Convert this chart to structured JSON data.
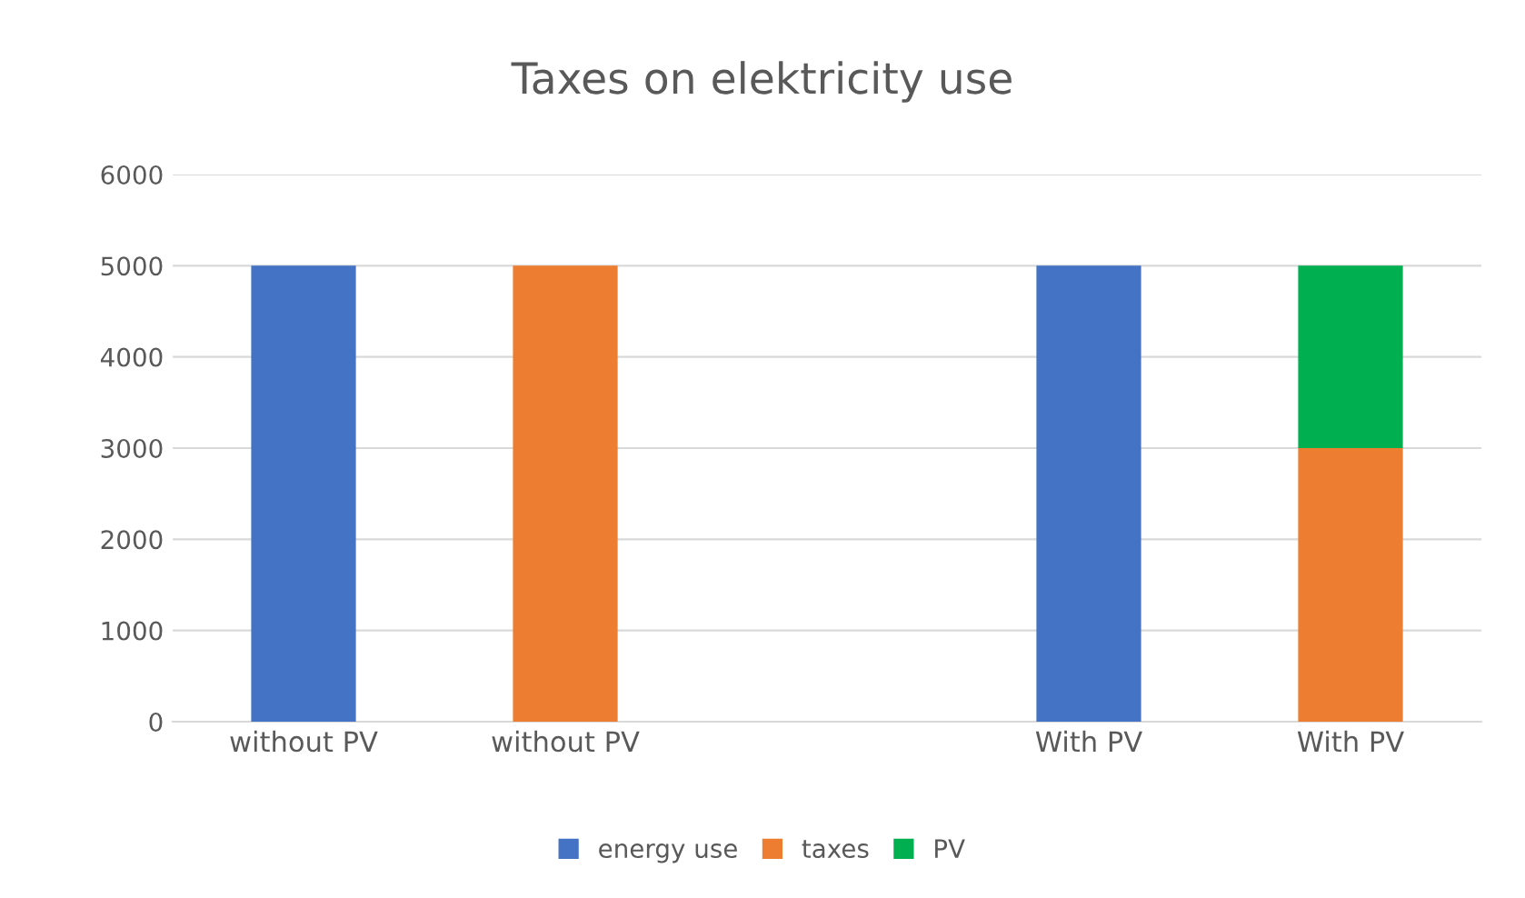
{
  "chart_data": {
    "type": "bar",
    "title": "Taxes on elektricity use",
    "stacked": true,
    "categories": [
      "without PV",
      "without PV",
      null,
      "With PV",
      "With PV"
    ],
    "series": [
      {
        "name": "energy use",
        "color": "#4472c4",
        "values": [
          5000,
          null,
          null,
          5000,
          null
        ]
      },
      {
        "name": "taxes",
        "color": "#ed7d31",
        "values": [
          null,
          5000,
          null,
          null,
          3000
        ]
      },
      {
        "name": "PV",
        "color": "#00b050",
        "values": [
          null,
          null,
          null,
          null,
          2000
        ]
      }
    ],
    "ylim": [
      0,
      6000
    ],
    "yticks": [
      0,
      1000,
      2000,
      3000,
      4000,
      5000,
      6000
    ],
    "grid": "y",
    "legend": "bottom"
  }
}
